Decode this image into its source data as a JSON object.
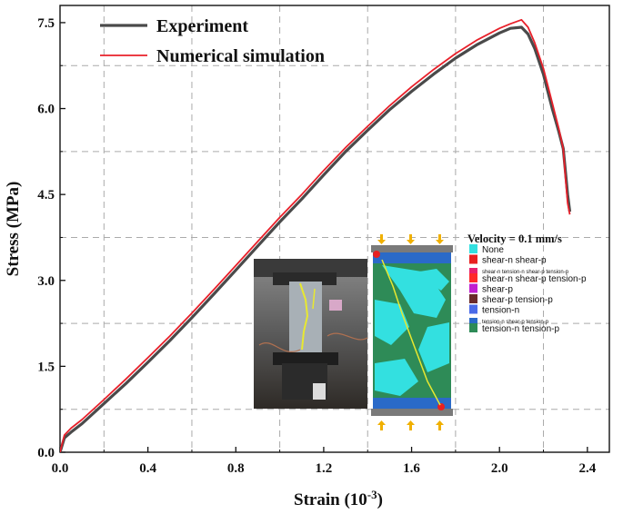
{
  "chart_data": {
    "type": "line",
    "xlabel": "Strain (10",
    "xlabel_sup": "-3",
    "xlabel_close": ")",
    "ylabel": "Stress (MPa)",
    "xlim": [
      0.0,
      2.5
    ],
    "ylim": [
      0.0,
      7.8
    ],
    "x_ticks": [
      "0.0",
      "0.4",
      "0.8",
      "1.2",
      "1.6",
      "2.0",
      "2.4"
    ],
    "x_tick_values": [
      0.0,
      0.4,
      0.8,
      1.2,
      1.6,
      2.0,
      2.4
    ],
    "y_ticks": [
      "0.0",
      "1.5",
      "3.0",
      "4.5",
      "6.0",
      "7.5"
    ],
    "y_tick_values": [
      0.0,
      1.5,
      3.0,
      4.5,
      6.0,
      7.5
    ],
    "grid": true,
    "legend_position": "top-left",
    "series": [
      {
        "name": "Experiment",
        "color": "#4a4a4a",
        "x": [
          0.0,
          0.02,
          0.05,
          0.1,
          0.2,
          0.3,
          0.4,
          0.5,
          0.6,
          0.7,
          0.8,
          0.9,
          1.0,
          1.1,
          1.2,
          1.3,
          1.4,
          1.5,
          1.6,
          1.7,
          1.8,
          1.9,
          2.0,
          2.05,
          2.1,
          2.13,
          2.16,
          2.2,
          2.24,
          2.27,
          2.29,
          2.3,
          2.31,
          2.32
        ],
        "y": [
          0.0,
          0.25,
          0.35,
          0.5,
          0.85,
          1.2,
          1.57,
          1.95,
          2.35,
          2.76,
          3.18,
          3.6,
          4.02,
          4.42,
          4.84,
          5.25,
          5.62,
          5.98,
          6.3,
          6.6,
          6.88,
          7.12,
          7.32,
          7.4,
          7.42,
          7.3,
          7.05,
          6.6,
          6.0,
          5.6,
          5.3,
          4.9,
          4.5,
          4.2
        ]
      },
      {
        "name": "Numerical simulation",
        "color": "#e8202a",
        "x": [
          0.0,
          0.02,
          0.05,
          0.1,
          0.2,
          0.3,
          0.4,
          0.5,
          0.6,
          0.7,
          0.8,
          0.9,
          1.0,
          1.1,
          1.2,
          1.3,
          1.4,
          1.5,
          1.6,
          1.7,
          1.8,
          1.9,
          2.0,
          2.05,
          2.1,
          2.13,
          2.16,
          2.2,
          2.24,
          2.27,
          2.29,
          2.3,
          2.31,
          2.32
        ],
        "y": [
          0.0,
          0.3,
          0.42,
          0.57,
          0.92,
          1.28,
          1.65,
          2.03,
          2.43,
          2.84,
          3.26,
          3.68,
          4.1,
          4.5,
          4.92,
          5.32,
          5.69,
          6.05,
          6.38,
          6.68,
          6.96,
          7.2,
          7.4,
          7.48,
          7.55,
          7.42,
          7.15,
          6.7,
          6.1,
          5.65,
          5.3,
          4.8,
          4.35,
          4.15
        ]
      }
    ]
  },
  "inset": {
    "legend_title": "Velocity = 0.1 mm/s",
    "legend_items": [
      {
        "label": "None",
        "color": "#33e0e0",
        "small": false
      },
      {
        "label": "shear-n shear-p",
        "color": "#e82020",
        "small": false
      },
      {
        "label": "shear-n tension-n shear-p tension-p",
        "color": "#e8206e",
        "small": true
      },
      {
        "label": "shear-n shear-p tension-p",
        "color": "#ff2a2a",
        "small": false
      },
      {
        "label": "shear-p",
        "color": "#c020d0",
        "small": false
      },
      {
        "label": "shear-p tension-p",
        "color": "#6a2a2a",
        "small": false
      },
      {
        "label": "tension-n",
        "color": "#4a6ae8",
        "small": false
      },
      {
        "label": "tension-n shear-p tension-p",
        "color": "#2a6ac8",
        "small": true
      },
      {
        "label": "tension-n tension-p",
        "color": "#2e8b57",
        "small": false
      }
    ]
  }
}
